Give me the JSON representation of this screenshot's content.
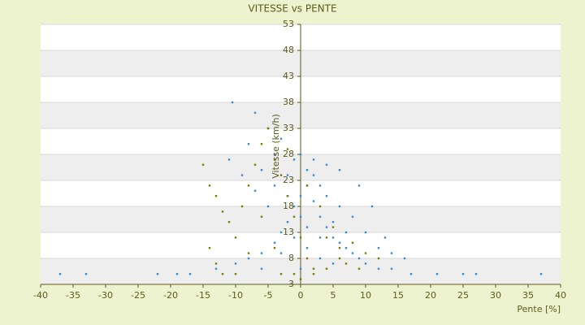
{
  "chart_data": {
    "type": "scatter",
    "title": "VITESSE vs PENTE",
    "x_label": "Pente [%]",
    "y_label": "Vitesse (km/h)",
    "xlim": [
      -40,
      40
    ],
    "xticks": [
      -40,
      -35,
      -30,
      -25,
      -20,
      -15,
      -10,
      -5,
      0,
      5,
      10,
      15,
      20,
      25,
      30,
      35,
      40
    ],
    "ylim": [
      3,
      53
    ],
    "yticks": [
      3,
      8,
      13,
      18,
      23,
      28,
      33,
      38,
      43,
      48,
      53
    ],
    "banded_grid": true,
    "series": [
      {
        "color": "#3a8ad4",
        "x": [
          -37,
          -33,
          -22,
          -19,
          -17,
          -13,
          -10,
          -8,
          -6,
          -4,
          -3,
          -2,
          -1,
          0,
          1,
          2,
          3,
          4,
          5,
          6,
          7,
          8,
          9,
          10,
          12,
          14,
          17,
          21,
          25,
          27,
          37,
          -10.5,
          -7,
          -5,
          -8,
          -3,
          -1,
          1,
          2,
          3,
          4,
          6,
          8,
          10,
          12,
          14,
          16,
          -6,
          -4,
          -2,
          0,
          -1,
          1,
          3,
          5,
          -5,
          -7,
          -9,
          -11,
          0,
          2,
          4,
          6,
          9,
          11,
          13,
          7,
          5,
          -3,
          -6,
          0,
          3,
          -2,
          -4,
          1
        ],
        "y": [
          5,
          5,
          5,
          5,
          5,
          6,
          7,
          8,
          9,
          11,
          13,
          15,
          18,
          20,
          22,
          19,
          16,
          14,
          12,
          11,
          10,
          9,
          8,
          7,
          6,
          6,
          5,
          5,
          5,
          5,
          5,
          38,
          36,
          33,
          30,
          31,
          27,
          25,
          24,
          22,
          20,
          18,
          16,
          13,
          10,
          9,
          8,
          25,
          22,
          20,
          16,
          12,
          10,
          8,
          7,
          18,
          21,
          24,
          27,
          28,
          27,
          26,
          25,
          22,
          18,
          12,
          13,
          15,
          9,
          6,
          6,
          12,
          24,
          28,
          14
        ]
      },
      {
        "color": "#7d7a05",
        "x": [
          -15,
          -14,
          -13,
          -12,
          -11,
          -14,
          -13,
          -10,
          -9,
          -8,
          -7,
          -6,
          -5,
          -4,
          -3,
          -2,
          -1,
          0,
          1,
          2,
          -1,
          -3,
          0,
          2,
          4,
          6,
          8,
          10,
          12,
          5,
          3,
          1,
          -2,
          -6,
          -8,
          -12,
          -10,
          7,
          9,
          -4,
          4,
          6
        ],
        "y": [
          26,
          22,
          20,
          17,
          15,
          10,
          7,
          12,
          18,
          22,
          26,
          30,
          33,
          27,
          24,
          20,
          16,
          12,
          8,
          6,
          5,
          5,
          4,
          5,
          6,
          10,
          11,
          9,
          8,
          14,
          18,
          22,
          29,
          16,
          9,
          5,
          5,
          7,
          6,
          10,
          12,
          8
        ]
      }
    ]
  }
}
